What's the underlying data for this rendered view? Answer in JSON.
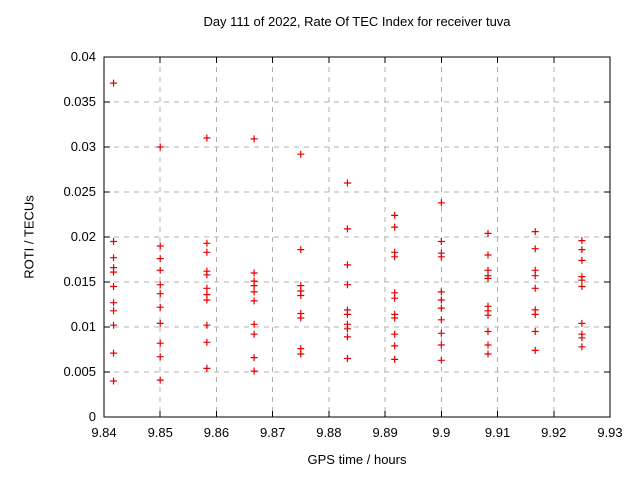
{
  "title": "Day 111 of 2022, Rate Of TEC Index for receiver tuva",
  "colors": {
    "marker": "#e60000",
    "grid": "#b0b0b0",
    "axis": "#000000",
    "background": "#ffffff",
    "text": "#000000"
  },
  "chart_data": {
    "type": "scatter",
    "title": "Day 111 of 2022, Rate Of TEC Index for receiver tuva",
    "xlabel": "GPS time / hours",
    "ylabel": "ROTI / TECUs",
    "xlim": [
      9.84,
      9.93
    ],
    "ylim": [
      0,
      0.04
    ],
    "grid": true,
    "legend": "none",
    "marker": "plus",
    "x_ticks": [
      {
        "value": 9.84,
        "label": "9.84"
      },
      {
        "value": 9.85,
        "label": "9.85"
      },
      {
        "value": 9.86,
        "label": "9.86"
      },
      {
        "value": 9.87,
        "label": "9.87"
      },
      {
        "value": 9.88,
        "label": "9.88"
      },
      {
        "value": 9.89,
        "label": "9.89"
      },
      {
        "value": 9.9,
        "label": "9.9"
      },
      {
        "value": 9.91,
        "label": "9.91"
      },
      {
        "value": 9.92,
        "label": "9.92"
      },
      {
        "value": 9.93,
        "label": "9.93"
      }
    ],
    "y_ticks": [
      {
        "value": 0,
        "label": "0"
      },
      {
        "value": 0.005,
        "label": "0.005"
      },
      {
        "value": 0.01,
        "label": "0.01"
      },
      {
        "value": 0.015,
        "label": "0.015"
      },
      {
        "value": 0.02,
        "label": "0.02"
      },
      {
        "value": 0.025,
        "label": "0.025"
      },
      {
        "value": 0.03,
        "label": "0.03"
      },
      {
        "value": 0.035,
        "label": "0.035"
      },
      {
        "value": 0.04,
        "label": "0.04"
      }
    ],
    "series": [
      {
        "name": "ROTI",
        "color": "#e60000",
        "points": [
          [
            9.8417,
            0.0371
          ],
          [
            9.8417,
            0.0195
          ],
          [
            9.8417,
            0.0177
          ],
          [
            9.8417,
            0.0166
          ],
          [
            9.8417,
            0.0161
          ],
          [
            9.8417,
            0.0145
          ],
          [
            9.8417,
            0.0127
          ],
          [
            9.8417,
            0.0118
          ],
          [
            9.8417,
            0.0102
          ],
          [
            9.8417,
            0.0071
          ],
          [
            9.8417,
            0.004
          ],
          [
            9.85,
            0.03
          ],
          [
            9.85,
            0.019
          ],
          [
            9.85,
            0.0176
          ],
          [
            9.85,
            0.0163
          ],
          [
            9.85,
            0.0147
          ],
          [
            9.85,
            0.0137
          ],
          [
            9.85,
            0.0122
          ],
          [
            9.85,
            0.0104
          ],
          [
            9.85,
            0.0082
          ],
          [
            9.85,
            0.0067
          ],
          [
            9.85,
            0.0041
          ],
          [
            9.8583,
            0.031
          ],
          [
            9.8583,
            0.0193
          ],
          [
            9.8583,
            0.0183
          ],
          [
            9.8583,
            0.0162
          ],
          [
            9.8583,
            0.0158
          ],
          [
            9.8583,
            0.0143
          ],
          [
            9.8583,
            0.0136
          ],
          [
            9.8583,
            0.013
          ],
          [
            9.8583,
            0.0102
          ],
          [
            9.8583,
            0.0083
          ],
          [
            9.8583,
            0.0054
          ],
          [
            9.8667,
            0.0309
          ],
          [
            9.8667,
            0.016
          ],
          [
            9.8667,
            0.0151
          ],
          [
            9.8667,
            0.0146
          ],
          [
            9.8667,
            0.0139
          ],
          [
            9.8667,
            0.0129
          ],
          [
            9.8667,
            0.0103
          ],
          [
            9.8667,
            0.0092
          ],
          [
            9.8667,
            0.0066
          ],
          [
            9.8667,
            0.0051
          ],
          [
            9.875,
            0.0292
          ],
          [
            9.875,
            0.0186
          ],
          [
            9.875,
            0.0146
          ],
          [
            9.875,
            0.014
          ],
          [
            9.875,
            0.0135
          ],
          [
            9.875,
            0.0115
          ],
          [
            9.875,
            0.011
          ],
          [
            9.875,
            0.0076
          ],
          [
            9.875,
            0.007
          ],
          [
            9.8833,
            0.026
          ],
          [
            9.8833,
            0.0209
          ],
          [
            9.8833,
            0.0169
          ],
          [
            9.8833,
            0.0147
          ],
          [
            9.8833,
            0.0119
          ],
          [
            9.8833,
            0.0114
          ],
          [
            9.8833,
            0.0103
          ],
          [
            9.8833,
            0.0098
          ],
          [
            9.8833,
            0.0089
          ],
          [
            9.8833,
            0.0065
          ],
          [
            9.8917,
            0.0224
          ],
          [
            9.8917,
            0.0211
          ],
          [
            9.8917,
            0.0183
          ],
          [
            9.8917,
            0.0178
          ],
          [
            9.8917,
            0.0138
          ],
          [
            9.8917,
            0.0132
          ],
          [
            9.8917,
            0.0114
          ],
          [
            9.8917,
            0.011
          ],
          [
            9.8917,
            0.0092
          ],
          [
            9.8917,
            0.0079
          ],
          [
            9.8917,
            0.0064
          ],
          [
            9.9,
            0.0238
          ],
          [
            9.9,
            0.0195
          ],
          [
            9.9,
            0.0182
          ],
          [
            9.9,
            0.0178
          ],
          [
            9.9,
            0.0139
          ],
          [
            9.9,
            0.013
          ],
          [
            9.9,
            0.0121
          ],
          [
            9.9,
            0.0108
          ],
          [
            9.9,
            0.0093
          ],
          [
            9.9,
            0.008
          ],
          [
            9.9,
            0.0063
          ],
          [
            9.9083,
            0.0204
          ],
          [
            9.9083,
            0.018
          ],
          [
            9.9083,
            0.0163
          ],
          [
            9.9083,
            0.0157
          ],
          [
            9.9083,
            0.0154
          ],
          [
            9.9083,
            0.0123
          ],
          [
            9.9083,
            0.0118
          ],
          [
            9.9083,
            0.0113
          ],
          [
            9.9083,
            0.0095
          ],
          [
            9.9083,
            0.008
          ],
          [
            9.9083,
            0.007
          ],
          [
            9.9167,
            0.0206
          ],
          [
            9.9167,
            0.0187
          ],
          [
            9.9167,
            0.0163
          ],
          [
            9.9167,
            0.0157
          ],
          [
            9.9167,
            0.0143
          ],
          [
            9.9167,
            0.0119
          ],
          [
            9.9167,
            0.0114
          ],
          [
            9.9167,
            0.0095
          ],
          [
            9.9167,
            0.0074
          ],
          [
            9.925,
            0.0196
          ],
          [
            9.925,
            0.0186
          ],
          [
            9.925,
            0.0174
          ],
          [
            9.925,
            0.0156
          ],
          [
            9.925,
            0.0152
          ],
          [
            9.925,
            0.0145
          ],
          [
            9.925,
            0.0104
          ],
          [
            9.925,
            0.0092
          ],
          [
            9.925,
            0.0088
          ],
          [
            9.925,
            0.0078
          ]
        ]
      }
    ]
  }
}
